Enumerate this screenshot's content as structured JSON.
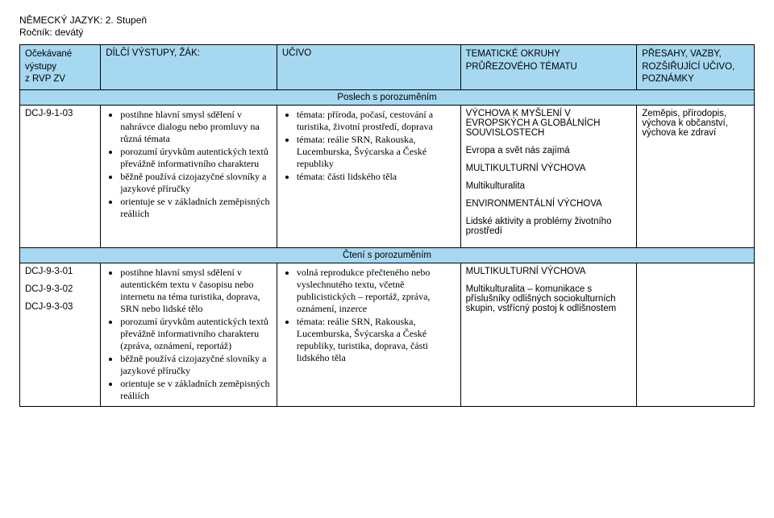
{
  "title": {
    "line1": "NĚMECKÝ JAZYK: 2. Stupeň",
    "line2": "Ročník: devátý"
  },
  "headers": {
    "c0a": "Očekávané",
    "c0b": "výstupy",
    "c0c": "z RVP ZV",
    "c1": "DÍLČÍ VÝSTUPY, ŽÁK:",
    "c2": "UČIVO",
    "c3a": "TEMATICKÉ OKRUHY",
    "c3b": "PRŮŘEZOVÉHO TÉMATU",
    "c4a": "PŘESAHY, VAZBY,",
    "c4b": "ROZŠIŘUJÍCÍ UČIVO,",
    "c4c": "POZNÁMKY"
  },
  "section1": "Poslech s porozuměním",
  "row1": {
    "code": "DCJ-9-1-03",
    "outputs": [
      "postihne hlavní smysl sdělení v nahrávce dialogu nebo promluvy na různá témata",
      "porozumí úryvkům autentických textů převážně informativního charakteru",
      "běžně používá cizojazyčné slovníky a jazykové příručky",
      "orientuje se v základních zeměpisných reáliích"
    ],
    "ucivo": [
      "témata: příroda, počasí, cestování a turistika, životní prostředí, doprava",
      "témata: reálie SRN, Rakouska, Lucemburska, Švýcarska a České republiky",
      "témata: části lidského těla"
    ],
    "okruhy": [
      "VÝCHOVA K MYŠLENÍ V EVROPSKÝCH A GLOBÁLNÍCH SOUVISLOSTECH",
      "Evropa a svět nás zajímá",
      "MULTIKULTURNÍ VÝCHOVA",
      "Multikulturalita",
      "ENVIRONMENTÁLNÍ VÝCHOVA",
      "Lidské aktivity a problémy životního prostředí"
    ],
    "presahy": [
      "Zeměpis, přírodopis, výchova k občanství, výchova ke zdraví"
    ]
  },
  "section2": "Čtení s porozuměním",
  "row2": {
    "codes": [
      "DCJ-9-3-01",
      "DCJ-9-3-02",
      "DCJ-9-3-03"
    ],
    "outputs": [
      "postihne hlavní smysl sdělení v autentickém textu v časopisu nebo internetu na téma turistika, doprava, SRN nebo lidské tělo",
      "porozumí úryvkům autentických textů převážně informativního charakteru (zpráva, oznámení, reportáž)",
      "běžně používá cizojazyčné slovníky a jazykové příručky",
      "orientuje se v základních zeměpisných reáliích"
    ],
    "ucivo": [
      "volná reprodukce přečteného nebo vyslechnutého textu, včetně publicistických – reportáž, zpráva, oznámení, inzerce",
      "témata: reálie SRN, Rakouska, Lucemburska, Švýcarska a České republiky, turistika, doprava, části lidského těla"
    ],
    "okruhy": [
      "MULTIKULTURNÍ VÝCHOVA",
      "Multikulturalita – komunikace s příslušníky odlišných sociokulturních skupin, vstřícný postoj k odlišnostem"
    ]
  }
}
